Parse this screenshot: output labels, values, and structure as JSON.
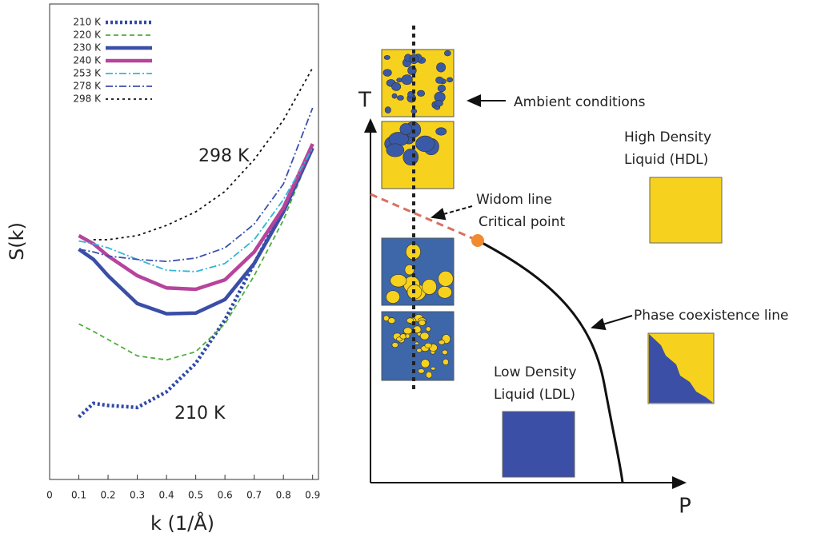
{
  "chart_data": {
    "type": "line",
    "xlabel": "k (1/Å)",
    "ylabel": "S(k)",
    "x": [
      0.1,
      0.15,
      0.2,
      0.3,
      0.4,
      0.5,
      0.6,
      0.7,
      0.8,
      0.9
    ],
    "xlim": [
      0,
      0.92
    ],
    "xticks": [
      0,
      0.1,
      0.2,
      0.3,
      0.4,
      0.5,
      0.6,
      0.7,
      0.8,
      0.9
    ],
    "ylim": [
      0,
      7
    ],
    "series": [
      {
        "name": "210 K",
        "color": "#2f4aa8",
        "style": "dotted",
        "bold": true,
        "values": [
          0.92,
          1.12,
          1.09,
          1.06,
          1.29,
          1.71,
          2.35,
          3.18,
          3.98,
          4.88
        ]
      },
      {
        "name": "220 K",
        "color": "#4caf3a",
        "style": "dashed",
        "bold": false,
        "values": [
          2.29,
          2.18,
          2.06,
          1.82,
          1.76,
          1.88,
          2.29,
          3.0,
          3.82,
          4.88
        ]
      },
      {
        "name": "230 K",
        "color": "#3a4ea8",
        "style": "solid",
        "bold": true,
        "values": [
          3.39,
          3.24,
          3.0,
          2.59,
          2.44,
          2.45,
          2.65,
          3.18,
          3.94,
          4.88
        ]
      },
      {
        "name": "240 K",
        "color": "#b6449c",
        "style": "solid",
        "bold": true,
        "values": [
          3.59,
          3.47,
          3.29,
          3.0,
          2.82,
          2.8,
          2.94,
          3.35,
          4.0,
          4.94
        ]
      },
      {
        "name": "253 K",
        "color": "#33b6d6",
        "style": "dashdot",
        "bold": false,
        "values": [
          3.51,
          3.47,
          3.41,
          3.24,
          3.08,
          3.06,
          3.18,
          3.53,
          4.12,
          4.88
        ]
      },
      {
        "name": "278 K",
        "color": "#3b4fb0",
        "style": "dashdot",
        "bold": false,
        "values": [
          3.39,
          3.35,
          3.29,
          3.24,
          3.21,
          3.26,
          3.41,
          3.76,
          4.35,
          5.47
        ]
      },
      {
        "name": "298 K",
        "color": "#111111",
        "style": "dotted",
        "bold": false,
        "values": [
          null,
          3.53,
          3.53,
          3.59,
          3.74,
          3.94,
          4.24,
          4.71,
          5.29,
          6.06
        ]
      }
    ],
    "annotations": [
      "298 K",
      "210 K"
    ]
  },
  "diagram": {
    "t_axis": "T",
    "p_axis": "P",
    "ambient": "Ambient conditions",
    "hdl": [
      "High Density",
      "Liquid (HDL)"
    ],
    "widom": "Widom line",
    "critical": "Critical point",
    "coexistence": "Phase coexistence line",
    "ldl": [
      "Low Density",
      "Liquid (LDL)"
    ]
  }
}
